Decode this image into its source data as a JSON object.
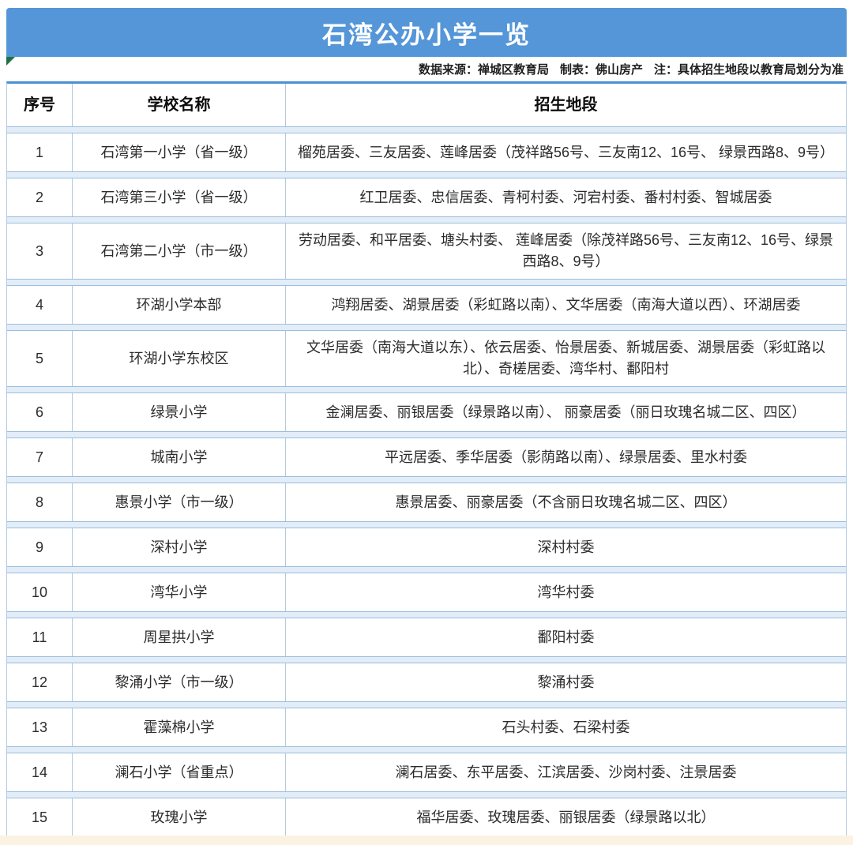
{
  "title": "石湾公办小学一览",
  "meta": {
    "source": "数据来源：禅城区教育局",
    "author": "制表：佛山房产",
    "note": "注：具体招生地段以教育局划分为准"
  },
  "colors": {
    "title_bar_blue": "#5596d8",
    "table_border_blue": "#4a90d2",
    "row_gap_stripe": "#e2edf8",
    "grid_line": "#b3c9de",
    "corner_marker_green": "#1e7145",
    "bottom_strip_cream": "#fcf2e2",
    "text_dark": "#2b2b2b"
  },
  "table": {
    "headers": [
      "序号",
      "学校名称",
      "招生地段"
    ],
    "rows": [
      {
        "no": "1",
        "school": "石湾第一小学（省一级）",
        "district": "榴苑居委、三友居委、莲峰居委（茂祥路56号、三友南12、16号、 绿景西路8、9号）"
      },
      {
        "no": "2",
        "school": "石湾第三小学（省一级）",
        "district": "红卫居委、忠信居委、青柯村委、河宕村委、番村村委、智城居委"
      },
      {
        "no": "3",
        "school": "石湾第二小学（市一级）",
        "district": "劳动居委、和平居委、塘头村委、 莲峰居委（除茂祥路56号、三友南12、16号、绿景西路8、9号）"
      },
      {
        "no": "4",
        "school": "环湖小学本部",
        "district": "鸿翔居委、湖景居委（彩虹路以南）、文华居委（南海大道以西）、环湖居委"
      },
      {
        "no": "5",
        "school": "环湖小学东校区",
        "district": "文华居委（南海大道以东）、依云居委、怡景居委、新城居委、湖景居委（彩虹路以北）、奇槎居委、湾华村、鄱阳村"
      },
      {
        "no": "6",
        "school": "绿景小学",
        "district": "金澜居委、丽银居委（绿景路以南）、 丽豪居委（丽日玫瑰名城二区、四区）"
      },
      {
        "no": "7",
        "school": "城南小学",
        "district": "平远居委、季华居委（影荫路以南）、绿景居委、里水村委"
      },
      {
        "no": "8",
        "school": "惠景小学（市一级）",
        "district": "惠景居委、丽豪居委（不含丽日玫瑰名城二区、四区）"
      },
      {
        "no": "9",
        "school": "深村小学",
        "district": "深村村委"
      },
      {
        "no": "10",
        "school": "湾华小学",
        "district": "湾华村委"
      },
      {
        "no": "11",
        "school": "周星拱小学",
        "district": "鄱阳村委"
      },
      {
        "no": "12",
        "school": "黎涌小学（市一级）",
        "district": "黎涌村委"
      },
      {
        "no": "13",
        "school": "霍藻棉小学",
        "district": "石头村委、石梁村委"
      },
      {
        "no": "14",
        "school": "澜石小学（省重点）",
        "district": "澜石居委、东平居委、江滨居委、沙岗村委、注景居委"
      },
      {
        "no": "15",
        "school": "玫瑰小学",
        "district": "福华居委、玫瑰居委、丽银居委（绿景路以北）"
      }
    ]
  }
}
